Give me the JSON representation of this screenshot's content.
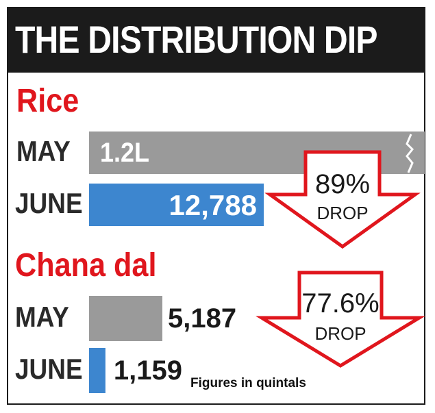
{
  "title": "THE DISTRIBUTION DIP",
  "footnote": "Figures in quintals",
  "chart_data": [
    {
      "type": "bar",
      "title": "Rice",
      "categories": [
        "MAY",
        "JUNE"
      ],
      "values": [
        120000,
        12788
      ],
      "data_labels": [
        "1.2L",
        "12,788"
      ],
      "axis_break": true,
      "annotation": {
        "value": "89%",
        "label": "DROP"
      },
      "colors": [
        "#9a9a9a",
        "#3d86cf"
      ]
    },
    {
      "type": "bar",
      "title": "Chana dal",
      "categories": [
        "MAY",
        "JUNE"
      ],
      "values": [
        5187,
        1159
      ],
      "data_labels": [
        "5,187",
        "1,159"
      ],
      "annotation": {
        "value": "77.6%",
        "label": "DROP"
      },
      "colors": [
        "#9a9a9a",
        "#3d86cf"
      ]
    }
  ],
  "colors": {
    "title_bg": "#1b1b1b",
    "section_title": "#e0161d",
    "arrow_stroke": "#e0161d"
  }
}
